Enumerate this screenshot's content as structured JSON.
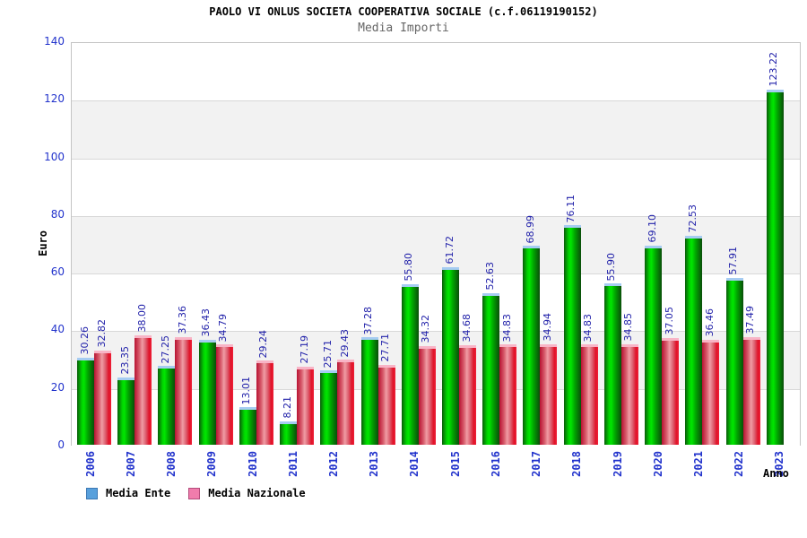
{
  "header": {
    "title": "PAOLO VI ONLUS SOCIETA COOPERATIVA SOCIALE (c.f.06119190152)",
    "subtitle": "Media Importi"
  },
  "chart_data": {
    "type": "bar",
    "title": "PAOLO VI ONLUS SOCIETA COOPERATIVA SOCIALE (c.f.06119190152)",
    "subtitle": "Media Importi",
    "xlabel": "Anno",
    "ylabel": "Euro",
    "ylim": [
      0,
      140
    ],
    "yticks": [
      0,
      20,
      40,
      60,
      80,
      100,
      120,
      140
    ],
    "grid": true,
    "legend_position": "bottom-left",
    "value_label_decimals": 2,
    "categories": [
      "2006",
      "2007",
      "2008",
      "2009",
      "2010",
      "2011",
      "2012",
      "2013",
      "2014",
      "2015",
      "2016",
      "2017",
      "2018",
      "2019",
      "2020",
      "2021",
      "2022",
      "2023"
    ],
    "series": [
      {
        "name": "Media Ente",
        "values": [
          30.26,
          23.35,
          27.25,
          36.43,
          13.01,
          8.21,
          25.71,
          37.28,
          55.8,
          61.72,
          52.63,
          68.99,
          76.11,
          55.9,
          69.1,
          72.53,
          57.91,
          123.22
        ]
      },
      {
        "name": "Media Nazionale",
        "values": [
          32.82,
          38.0,
          37.36,
          34.79,
          29.24,
          27.19,
          29.43,
          27.71,
          34.32,
          34.68,
          34.83,
          34.94,
          34.83,
          34.85,
          37.05,
          36.46,
          37.49,
          null
        ]
      }
    ]
  },
  "legend": {
    "items": [
      {
        "label": "Media Ente",
        "swatch_fill": "#58A0DC",
        "swatch_border": "#3C78B4"
      },
      {
        "label": "Media Nazionale",
        "swatch_fill": "#F07CAC",
        "swatch_border": "#B44C7C"
      }
    ]
  },
  "colors": {
    "axis_text": "#2233CC",
    "value_text": "#2222AA",
    "band_gray": "#F2F2F2",
    "grid_line": "#D8D8D8",
    "plot_border": "#C4C4C4",
    "ente_bar_gradient": "linear-gradient(90deg,#0A5C0A 0%,#00D400 28%,#00E600 40%,#00A800 62%,#067206 84%,#0A4E0A 100%)",
    "ente_bar_cap": "#A6CCF2",
    "nazionale_bar_gradient": "linear-gradient(90deg,#B81232 0%,#D85C6C 28%,#F09CA4 46%,#DC6070 66%,#E01228 86%,#EE2038 100%)",
    "nazionale_bar_cap": "#F8B4C6"
  }
}
